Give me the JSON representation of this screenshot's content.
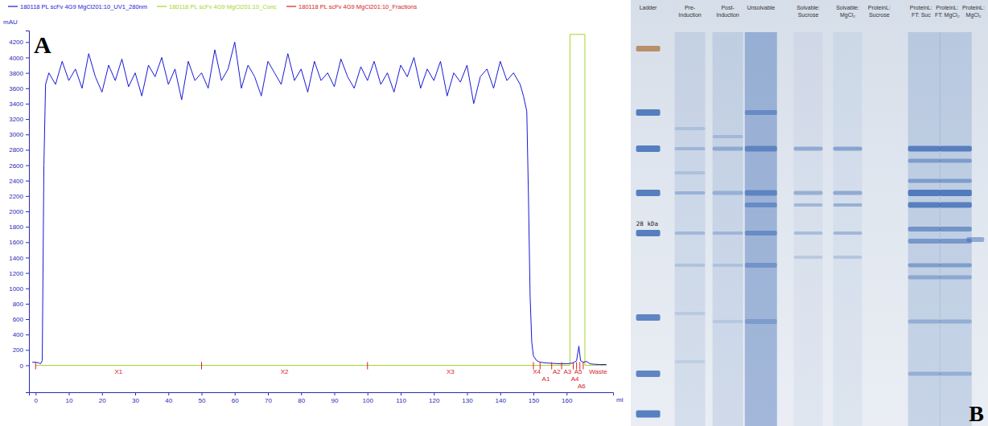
{
  "chart_data": {
    "type": "line",
    "letter": "A",
    "legend": "top",
    "xlabel": "ml",
    "ylabel": "mAU",
    "xlim": [
      -2,
      174
    ],
    "ylim": [
      -350,
      4350
    ],
    "xticks": [
      0,
      10,
      20,
      30,
      40,
      50,
      60,
      70,
      80,
      90,
      100,
      110,
      120,
      130,
      140,
      150,
      160
    ],
    "yticks": [
      0,
      200,
      400,
      600,
      800,
      1000,
      1200,
      1400,
      1600,
      1800,
      2000,
      2200,
      2400,
      2600,
      2800,
      3000,
      3200,
      3400,
      3600,
      3800,
      4000,
      4200
    ],
    "series": [
      {
        "name": "180118 PL scFv 4G9 MgCl201:10_UV1_280nm",
        "color": "#1818d8",
        "x": [
          -1,
          0,
          1,
          1.5,
          2,
          2.5,
          3,
          4,
          6,
          8,
          10,
          12,
          14,
          16,
          18,
          20,
          22,
          24,
          26,
          28,
          30,
          32,
          34,
          36,
          38,
          40,
          42,
          44,
          46,
          48,
          50,
          52,
          54,
          56,
          58,
          60,
          62,
          64,
          66,
          68,
          70,
          72,
          74,
          76,
          78,
          80,
          82,
          84,
          86,
          88,
          90,
          92,
          94,
          96,
          98,
          100,
          102,
          104,
          106,
          108,
          110,
          112,
          114,
          116,
          118,
          120,
          122,
          124,
          126,
          128,
          130,
          132,
          134,
          136,
          138,
          140,
          142,
          144,
          146,
          147,
          148,
          148.5,
          149,
          149.5,
          150,
          151,
          152,
          154,
          156,
          158,
          160,
          161,
          162,
          163,
          163.7,
          164.2,
          165,
          166,
          167,
          168,
          170,
          172
        ],
        "values": [
          40,
          40,
          30,
          20,
          60,
          2600,
          3650,
          3800,
          3650,
          3950,
          3700,
          3850,
          3600,
          4050,
          3750,
          3550,
          3900,
          3700,
          3980,
          3620,
          3800,
          3500,
          3900,
          3750,
          4000,
          3650,
          3850,
          3450,
          3950,
          3700,
          3800,
          3600,
          4100,
          3700,
          3850,
          4200,
          3600,
          3900,
          3750,
          3500,
          3950,
          3800,
          3650,
          4050,
          3700,
          3850,
          3550,
          3950,
          3700,
          3800,
          3620,
          3980,
          3750,
          3600,
          3880,
          3700,
          3950,
          3650,
          3800,
          3550,
          3900,
          3750,
          4000,
          3600,
          3850,
          3700,
          3950,
          3500,
          3800,
          3680,
          3900,
          3400,
          3750,
          3850,
          3600,
          3950,
          3700,
          3800,
          3650,
          3500,
          3300,
          2200,
          900,
          300,
          120,
          60,
          40,
          30,
          25,
          20,
          20,
          25,
          30,
          60,
          250,
          60,
          40,
          50,
          20,
          15,
          10,
          10
        ]
      },
      {
        "name": "180118 PL scFv 4G9 MgCl201:10_Conc",
        "color": "#a8d42a",
        "x": [
          0,
          161,
          161,
          165.5,
          165.5,
          172
        ],
        "values": [
          0,
          0,
          4300,
          4300,
          0,
          0
        ]
      }
    ],
    "fractions": {
      "name": "180118 PL scFv 4G9 MgCl201:10_Fractions",
      "color": "#d82020",
      "x": [
        0,
        50,
        100,
        150,
        152,
        155.5,
        158.5,
        162,
        163,
        164,
        165
      ],
      "labels": [
        "X1",
        "X2",
        "X3",
        "X4",
        "A1",
        "A2",
        "A3",
        "A4",
        "A5",
        "A6",
        "Waste"
      ]
    }
  },
  "gel": {
    "letter": "B",
    "marker_label": "28 kDa",
    "lanes": [
      "Ladder",
      "Pre-Induction",
      "Post-Induction",
      "Unsolvable",
      "Solvable: Sucrose",
      "Solvable: MgCl₂",
      "ProteinL: Sucrose",
      "ProteinL: FT: Suc",
      "ProteinL: FT: MgCl₂",
      "ProteinL: MgCl₂"
    ]
  }
}
